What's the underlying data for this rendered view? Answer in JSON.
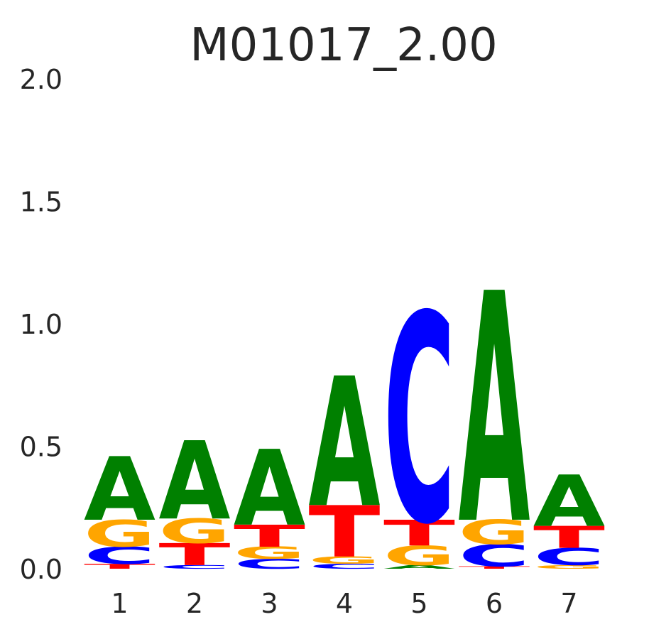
{
  "chart_data": {
    "type": "sequence-logo",
    "title": "M01017_2.00",
    "xlabel": "",
    "ylabel": "",
    "ylim": [
      0,
      2
    ],
    "y_ticks": [
      "0.0",
      "0.5",
      "1.0",
      "1.5",
      "2.0"
    ],
    "positions": [
      "1",
      "2",
      "3",
      "4",
      "5",
      "6",
      "7"
    ],
    "colors": {
      "A": "#008000",
      "C": "#0000ff",
      "G": "#ffa500",
      "T": "#ff0000"
    },
    "stacks": [
      [
        {
          "letter": "T",
          "height": 0.02
        },
        {
          "letter": "C",
          "height": 0.07
        },
        {
          "letter": "G",
          "height": 0.11
        },
        {
          "letter": "A",
          "height": 0.26
        }
      ],
      [
        {
          "letter": "C",
          "height": 0.015
        },
        {
          "letter": "T",
          "height": 0.09
        },
        {
          "letter": "G",
          "height": 0.1
        },
        {
          "letter": "A",
          "height": 0.32
        }
      ],
      [
        {
          "letter": "C",
          "height": 0.04
        },
        {
          "letter": "G",
          "height": 0.05
        },
        {
          "letter": "T",
          "height": 0.09
        },
        {
          "letter": "A",
          "height": 0.31
        }
      ],
      [
        {
          "letter": "C",
          "height": 0.02
        },
        {
          "letter": "G",
          "height": 0.03
        },
        {
          "letter": "T",
          "height": 0.21
        },
        {
          "letter": "A",
          "height": 0.53
        }
      ],
      [
        {
          "letter": "A",
          "height": 0.015
        },
        {
          "letter": "G",
          "height": 0.08
        },
        {
          "letter": "T",
          "height": 0.105
        },
        {
          "letter": "C",
          "height": 0.85
        }
      ],
      [
        {
          "letter": "T",
          "height": 0.01
        },
        {
          "letter": "C",
          "height": 0.09
        },
        {
          "letter": "G",
          "height": 0.1
        },
        {
          "letter": "A",
          "height": 0.94
        }
      ],
      [
        {
          "letter": "G",
          "height": 0.015
        },
        {
          "letter": "C",
          "height": 0.07
        },
        {
          "letter": "T",
          "height": 0.09
        },
        {
          "letter": "A",
          "height": 0.21
        }
      ]
    ]
  }
}
